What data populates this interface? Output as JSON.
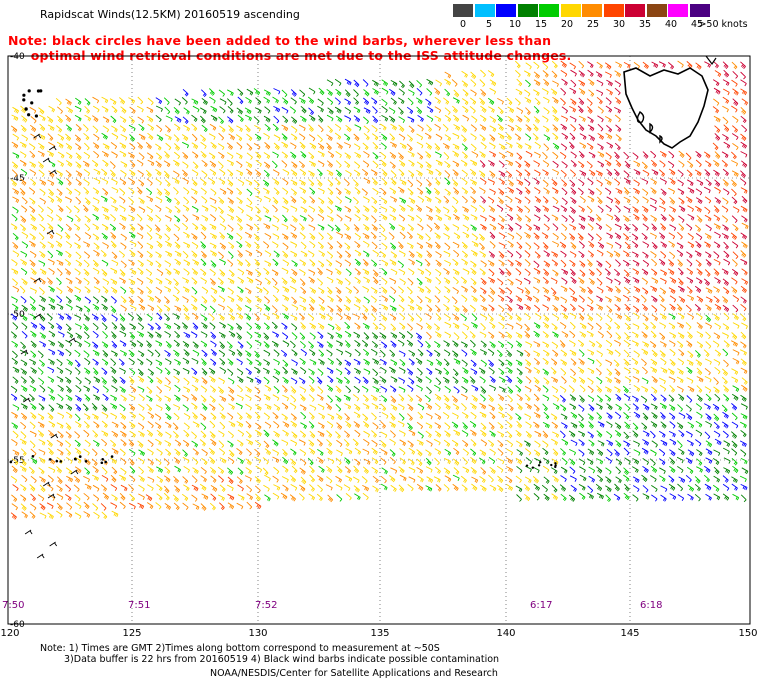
{
  "title": "Rapidscat Winds(12.5KM) 20160519 ascending",
  "note_lines": [
    "Note: black circles have been added to the wind barbs, wherever less than",
    "     optimal wind retrieval conditions are met due to the ISS attitude changes."
  ],
  "colorbar": {
    "labels": [
      "0",
      "5",
      "10",
      "15",
      "20",
      "25",
      "30",
      "35",
      "40",
      "45",
      ">50 knots"
    ],
    "colors": [
      "#444444",
      "#00bfff",
      "#0000ff",
      "#008000",
      "#00cc00",
      "#ffd700",
      "#ff8c00",
      "#ff4500",
      "#cc0033",
      "#8b4513",
      "#ff00ff",
      "#4b0082"
    ]
  },
  "lat_labels": [
    "-40",
    "-45",
    "-50",
    "-55",
    "-60"
  ],
  "lon_labels": [
    "120",
    "125",
    "130",
    "135",
    "140",
    "145",
    "150"
  ],
  "time_labels": [
    "7:50",
    "7:51",
    "7:52",
    "6:17",
    "6:18"
  ],
  "footer": {
    "line1": "Note: 1) Times are GMT 2)Times along bottom correspond to measurement at ~50S",
    "line2": "3)Data buffer is 22 hrs from 20160519 4) Black wind barbs indicate possible contamination",
    "line3": "NOAA/NESDIS/Center for Satellite Applications and Research"
  }
}
